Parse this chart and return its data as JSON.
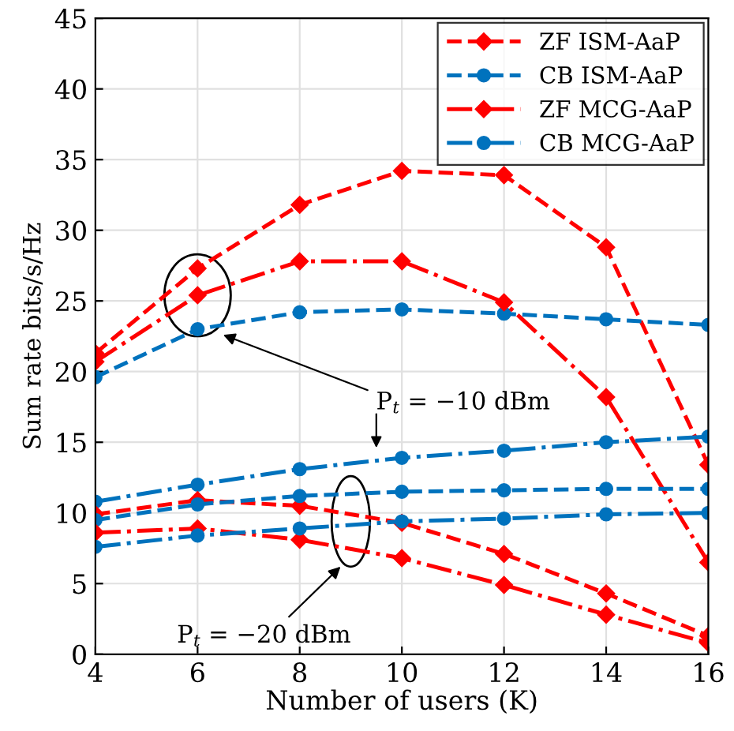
{
  "chart_data": {
    "type": "line",
    "xlabel": "Number of users (K)",
    "ylabel": "Sum rate bits/s/Hz",
    "x": [
      4,
      6,
      8,
      10,
      12,
      14,
      16
    ],
    "xlim": [
      4,
      16
    ],
    "xticks": [
      4,
      6,
      8,
      10,
      12,
      14,
      16
    ],
    "ylim": [
      0,
      45
    ],
    "yticks": [
      0,
      5,
      10,
      15,
      20,
      25,
      30,
      35,
      40,
      45
    ],
    "grid": true,
    "legend": "top right",
    "series": [
      {
        "name": "ZF ISM-AaP",
        "color": "#ff0000",
        "marker": "diamond",
        "line_style": "dashed",
        "values": [
          21.3,
          27.3,
          31.8,
          34.2,
          33.9,
          28.8,
          13.4
        ]
      },
      {
        "name": "CB ISM-AaP",
        "color": "#0072bd",
        "marker": "circle",
        "line_style": "dashed",
        "values": [
          19.6,
          23.0,
          24.2,
          24.4,
          24.1,
          23.7,
          23.3
        ]
      },
      {
        "name": "ZF MCG-AaP",
        "color": "#ff0000",
        "marker": "diamond",
        "line_style": "dashdot",
        "values": [
          20.7,
          25.4,
          27.8,
          27.8,
          24.9,
          18.2,
          6.5
        ]
      },
      {
        "name": "CB MCG-AaP",
        "color": "#0072bd",
        "marker": "circle",
        "line_style": "dashdot",
        "values": [
          10.8,
          12.0,
          13.1,
          13.9,
          14.4,
          15.0,
          15.4
        ]
      },
      {
        "color": "#ff0000",
        "marker": "diamond",
        "line_style": "dashed",
        "values": [
          9.9,
          10.9,
          10.5,
          9.3,
          7.1,
          4.3,
          1.3
        ]
      },
      {
        "color": "#0072bd",
        "marker": "circle",
        "line_style": "dashed",
        "values": [
          9.5,
          10.6,
          11.2,
          11.5,
          11.6,
          11.7,
          11.7
        ]
      },
      {
        "color": "#ff0000",
        "marker": "diamond",
        "line_style": "dashdot",
        "values": [
          8.6,
          8.9,
          8.1,
          6.8,
          4.9,
          2.8,
          0.8
        ]
      },
      {
        "color": "#0072bd",
        "marker": "circle",
        "line_style": "dashdot",
        "values": [
          7.6,
          8.4,
          8.9,
          9.4,
          9.6,
          9.9,
          10.0
        ]
      }
    ],
    "annotations": [
      {
        "text": "P$_{t}$ = −10 dBm",
        "x": 6.5,
        "y": 22.6
      },
      "P$_{t}$ = −20 dBm"
    ]
  }
}
